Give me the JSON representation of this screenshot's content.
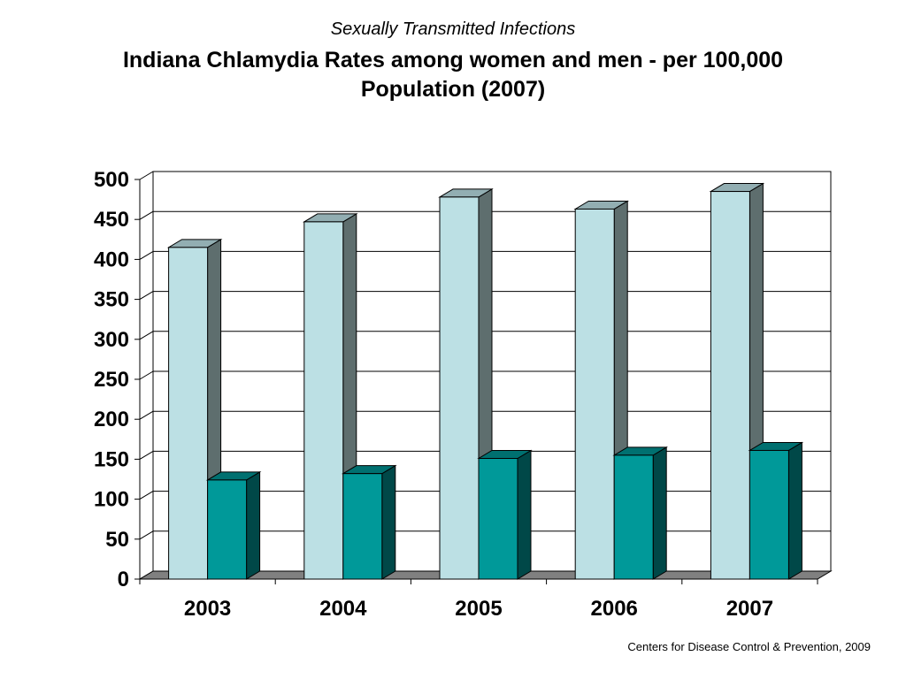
{
  "header": {
    "subtitle": "Sexually Transmitted Infections",
    "title": "Indiana Chlamydia Rates among women and men - per 100,000 Population (2007)"
  },
  "footer": {
    "source": "Centers for Disease Control & Prevention, 2009"
  },
  "colors": {
    "series1_front": "#BCE0E4",
    "series1_side": "#5E6E6E",
    "series1_top": "#92AEB2",
    "series2_front": "#009999",
    "series2_side": "#004848",
    "series2_top": "#007070",
    "floor": "#808080",
    "grid": "#000000"
  },
  "chart_data": {
    "type": "bar",
    "categories": [
      "2003",
      "2004",
      "2005",
      "2006",
      "2007"
    ],
    "series": [
      {
        "values": [
          415,
          447,
          478,
          463,
          485
        ]
      },
      {
        "values": [
          124,
          132,
          151,
          155,
          161
        ]
      }
    ],
    "title": "Indiana Chlamydia Rates among women and men - per 100,000 Population (2007)",
    "xlabel": "",
    "ylabel": "",
    "ylim": [
      0,
      500
    ],
    "yticks": [
      0,
      50,
      100,
      150,
      200,
      250,
      300,
      350,
      400,
      450,
      500
    ],
    "grid": true,
    "legend": "none",
    "style": "3d-clustered-column"
  }
}
